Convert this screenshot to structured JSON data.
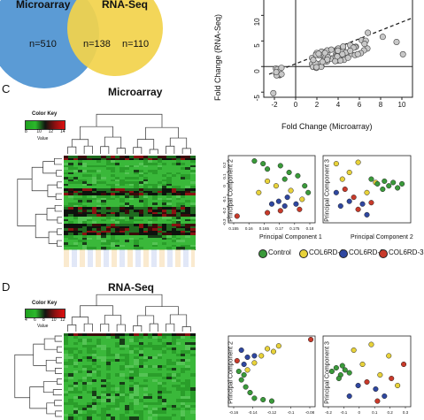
{
  "panel_a": {
    "label_microarray": "Microarray",
    "label_rnaseq": "RNA-Seq",
    "n_left": "n=510",
    "n_mid": "n=138",
    "n_right": "n=110",
    "colors": {
      "left": "#5b9bd5",
      "right": "#f2d34c"
    }
  },
  "panel_b": {
    "xlabel": "Fold Change (Microarray)",
    "ylabel": "Fold Change (RNA-Seq)",
    "xticks": [
      "-2",
      "0",
      "2",
      "4",
      "6",
      "8",
      "10"
    ],
    "yticks": [
      "-5",
      "0",
      "5",
      "10"
    ]
  },
  "panel_c": {
    "letter": "C",
    "title": "Microarray",
    "color_key": "Color Key",
    "key_value": "Value",
    "key_ticks": [
      "8",
      "10",
      "12",
      "14"
    ],
    "pc1_label": "Principal Component 1",
    "pc2_label": "Principal Component 2",
    "pc2b_label": "Principal Component 2",
    "pc3_label": "Principal Component 3",
    "pc_x_ticks": [
      "0.155",
      "0.16",
      "0.165",
      "0.17",
      "0.175",
      "0.18"
    ],
    "pc_y_ticks": [
      "0.2",
      "0.1",
      "0",
      "-0.1",
      "-0.2",
      "-0.3"
    ]
  },
  "panel_d": {
    "letter": "D",
    "title": "RNA-Seq",
    "color_key": "Color Key",
    "key_value": "Value",
    "key_ticks": [
      "4",
      "6",
      "8",
      "10",
      "12"
    ],
    "pc2_label": "Principal Component 2",
    "pc3_label": "Principal Component 3",
    "pc_x_ticks": [
      "-0.16",
      "-0.14",
      "-0.12",
      "-0.1",
      "-0.08"
    ],
    "pc_x2_ticks": [
      "-0.2",
      "-0.1",
      "0",
      "0.1",
      "0.2",
      "0.3"
    ]
  },
  "legend": {
    "items": [
      {
        "label": "Control",
        "color": "#3a9a3a"
      },
      {
        "label": "COL6RD-1",
        "color": "#e8d23a"
      },
      {
        "label": "COL6RD-2",
        "color": "#2f47a0"
      },
      {
        "label": "COL6RD-3",
        "color": "#c83a2a"
      }
    ]
  }
}
